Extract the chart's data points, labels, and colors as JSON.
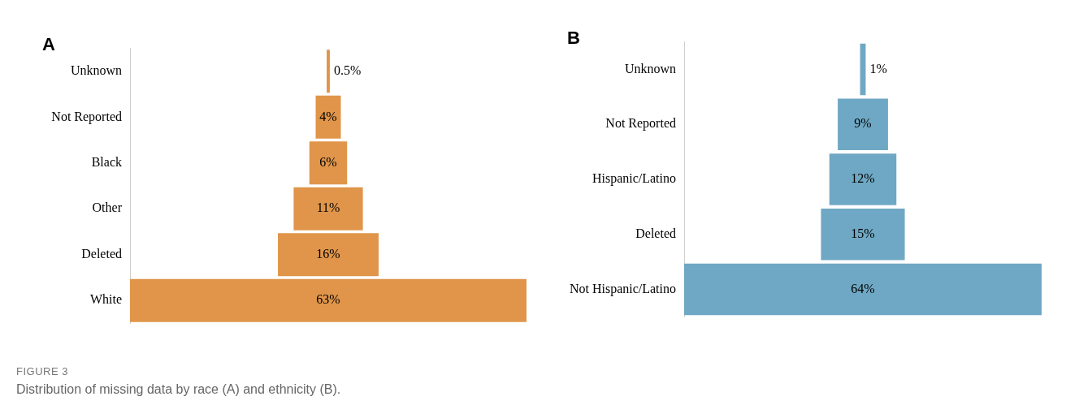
{
  "chart_data": [
    {
      "type": "other",
      "title": "A",
      "categories": [
        "Unknown",
        "Not Reported",
        "Black",
        "Other",
        "Deleted",
        "White"
      ],
      "values": [
        0.5,
        4,
        6,
        11,
        16,
        63
      ],
      "value_labels": [
        "0.5%",
        "4%",
        "6%",
        "11%",
        "16%",
        "63%"
      ],
      "color": "#e0954a",
      "legend": false,
      "annotations": [
        "FIGURE 3",
        "Distribution of missing data by race (A) and ethnicity (B)."
      ]
    },
    {
      "type": "other",
      "title": "B",
      "categories": [
        "Unknown",
        "Not Reported",
        "Hispanic/Latino",
        "Deleted",
        "Not Hispanic/Latino"
      ],
      "values": [
        1,
        9,
        12,
        15,
        64
      ],
      "value_labels": [
        "1%",
        "9%",
        "12%",
        "15%",
        "64%"
      ],
      "color": "#6fa8c4",
      "legend": false
    }
  ]
}
